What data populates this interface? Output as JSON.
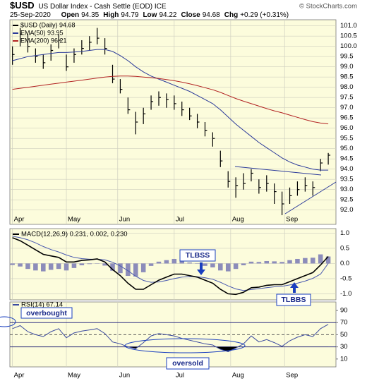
{
  "chart_data": [
    {
      "type": "ohlc",
      "title": "$USD",
      "subtitle": "US Dollar Index - Cash Settle (EOD) ICE",
      "credit": "© StockCharts.com",
      "date": "25-Sep-2020",
      "quote": [
        {
          "name": "Open",
          "value": 94.35
        },
        {
          "name": "High",
          "value": 94.79
        },
        {
          "name": "Low",
          "value": 94.22
        },
        {
          "name": "Close",
          "value": 94.68
        },
        {
          "name": "Chg",
          "value": 0.29,
          "value_label": "+0.29 (+0.31%)"
        }
      ],
      "x": [
        0,
        3,
        6,
        9,
        12,
        15,
        18,
        21,
        24,
        27,
        30,
        33,
        36,
        39,
        42,
        45,
        48,
        51,
        54,
        57,
        60,
        63,
        66,
        69,
        72,
        75,
        78,
        81,
        84,
        87,
        90,
        93,
        96,
        99,
        102,
        105,
        108,
        111,
        114,
        117,
        120,
        123
      ],
      "xlim": [
        -1,
        126
      ],
      "xticks": [
        {
          "value": 0,
          "label": "Apr"
        },
        {
          "value": 21,
          "label": "May"
        },
        {
          "value": 41,
          "label": "Jun"
        },
        {
          "value": 63,
          "label": "Jul"
        },
        {
          "value": 85,
          "label": "Aug"
        },
        {
          "value": 106,
          "label": "Sep"
        }
      ],
      "show_xtick_labels": true,
      "ylim": [
        91.3,
        101.3
      ],
      "yticks": [
        {
          "value": 92,
          "label": "92.0"
        },
        92.5,
        {
          "value": 93,
          "label": "93.0"
        },
        93.5,
        {
          "value": 94,
          "label": "94.0"
        },
        94.5,
        {
          "value": 95,
          "label": "95.0"
        },
        95.5,
        {
          "value": 96,
          "label": "96.0"
        },
        96.5,
        {
          "value": 97,
          "label": "97.0"
        },
        97.5,
        {
          "value": 98,
          "label": "98.0"
        },
        98.5,
        {
          "value": 99,
          "label": "99.0"
        },
        99.5,
        {
          "value": 100,
          "label": "100.0"
        },
        100.5,
        {
          "value": 101,
          "label": "101.0"
        }
      ],
      "grid": true,
      "series": [
        {
          "name": "$USD (Daily) 94.68",
          "color": "#000000",
          "high": [
            100.0,
            100.9,
            100.6,
            99.9,
            99.6,
            100.1,
            100.6,
            99.6,
            99.9,
            100.3,
            100.5,
            100.9,
            100.4,
            99.1,
            98.4,
            97.5,
            96.8,
            97.0,
            97.6,
            97.8,
            97.7,
            97.6,
            97.3,
            97.0,
            96.7,
            96.3,
            95.8,
            94.9,
            93.9,
            93.6,
            93.8,
            94.0,
            93.5,
            93.7,
            93.3,
            92.9,
            93.1,
            93.4,
            93.6,
            93.4,
            94.5,
            94.79
          ],
          "low": [
            99.1,
            100.0,
            99.7,
            99.2,
            98.9,
            99.3,
            99.9,
            98.8,
            99.2,
            99.6,
            99.8,
            100.1,
            99.6,
            98.2,
            97.7,
            96.7,
            95.7,
            96.2,
            96.9,
            97.1,
            97.0,
            96.9,
            96.6,
            96.4,
            96.0,
            95.6,
            95.1,
            94.1,
            93.1,
            92.6,
            93.0,
            93.4,
            92.8,
            92.9,
            92.3,
            91.75,
            92.3,
            92.7,
            92.9,
            92.7,
            93.9,
            94.22
          ],
          "close": [
            99.6,
            100.6,
            100.0,
            99.5,
            99.2,
            99.8,
            100.3,
            99.0,
            99.6,
            99.9,
            100.2,
            100.4,
            99.9,
            98.4,
            97.9,
            96.9,
            96.3,
            96.7,
            97.3,
            97.5,
            97.4,
            97.2,
            96.9,
            96.6,
            96.3,
            95.9,
            95.5,
            94.4,
            93.4,
            93.2,
            93.3,
            93.8,
            93.1,
            93.3,
            92.9,
            92.3,
            92.7,
            93.0,
            93.2,
            93.1,
            94.3,
            94.68
          ]
        },
        {
          "name": "EMA(50) 93.95",
          "color": "#2b3a9a",
          "values": [
            99.3,
            99.4,
            99.5,
            99.55,
            99.6,
            99.65,
            99.7,
            99.7,
            99.72,
            99.75,
            99.8,
            99.85,
            99.85,
            99.75,
            99.55,
            99.3,
            99.0,
            98.75,
            98.55,
            98.4,
            98.25,
            98.1,
            97.95,
            97.8,
            97.6,
            97.4,
            97.2,
            96.9,
            96.55,
            96.2,
            95.9,
            95.6,
            95.3,
            95.05,
            94.8,
            94.55,
            94.35,
            94.2,
            94.1,
            94.0,
            93.95,
            93.95
          ]
        },
        {
          "name": "EMA(200) 96.21",
          "color": "#b22222",
          "values": [
            97.9,
            97.95,
            98.0,
            98.05,
            98.1,
            98.15,
            98.2,
            98.25,
            98.3,
            98.35,
            98.4,
            98.45,
            98.5,
            98.53,
            98.55,
            98.55,
            98.53,
            98.5,
            98.47,
            98.43,
            98.38,
            98.32,
            98.25,
            98.17,
            98.08,
            97.98,
            97.88,
            97.75,
            97.6,
            97.45,
            97.32,
            97.2,
            97.08,
            96.96,
            96.85,
            96.75,
            96.64,
            96.53,
            96.42,
            96.32,
            96.25,
            96.21
          ]
        }
      ]
    },
    {
      "type": "macd",
      "title": "MACD(12,26,9) 0.231, 0.002, 0.230",
      "annotations": [
        "TLBSS",
        "TLBBS"
      ],
      "x": [
        0,
        3,
        6,
        9,
        12,
        15,
        18,
        21,
        24,
        27,
        30,
        33,
        36,
        39,
        42,
        45,
        48,
        51,
        54,
        57,
        60,
        63,
        66,
        69,
        72,
        75,
        78,
        81,
        84,
        87,
        90,
        93,
        96,
        99,
        102,
        105,
        108,
        111,
        114,
        117,
        120,
        123
      ],
      "xlim": [
        -1,
        126
      ],
      "xticks": [
        0,
        21,
        41,
        63,
        85,
        106
      ],
      "show_xtick_labels": false,
      "ylim": [
        -1.2,
        1.15
      ],
      "yticks": [
        {
          "value": -1,
          "label": "-1.0"
        },
        -0.5,
        {
          "value": 0,
          "label": "0.0"
        },
        0.5,
        {
          "value": 1,
          "label": "1.0"
        }
      ],
      "grid": true,
      "macd": {
        "color": "#000000",
        "values": [
          0.85,
          0.75,
          0.6,
          0.45,
          0.3,
          0.25,
          0.2,
          0.05,
          0.05,
          0.1,
          0.12,
          0.15,
          0.05,
          -0.2,
          -0.4,
          -0.65,
          -0.85,
          -0.85,
          -0.7,
          -0.55,
          -0.45,
          -0.35,
          -0.35,
          -0.4,
          -0.45,
          -0.55,
          -0.65,
          -0.85,
          -1.0,
          -1.02,
          -0.95,
          -0.8,
          -0.78,
          -0.72,
          -0.7,
          -0.7,
          -0.6,
          -0.5,
          -0.4,
          -0.3,
          -0.05,
          0.231
        ]
      },
      "signal": {
        "color": "#4a5ab0",
        "values": [
          0.9,
          0.85,
          0.78,
          0.68,
          0.56,
          0.46,
          0.38,
          0.28,
          0.2,
          0.16,
          0.14,
          0.14,
          0.12,
          0.04,
          -0.08,
          -0.24,
          -0.42,
          -0.56,
          -0.62,
          -0.61,
          -0.56,
          -0.5,
          -0.45,
          -0.43,
          -0.44,
          -0.47,
          -0.52,
          -0.62,
          -0.74,
          -0.84,
          -0.89,
          -0.86,
          -0.83,
          -0.8,
          -0.77,
          -0.75,
          -0.71,
          -0.65,
          -0.58,
          -0.49,
          -0.35,
          0.002
        ]
      },
      "histogram": {
        "color": "#8c8cba",
        "values": [
          -0.05,
          -0.1,
          -0.18,
          -0.23,
          -0.26,
          -0.21,
          -0.18,
          -0.23,
          -0.15,
          -0.06,
          -0.02,
          0.01,
          -0.07,
          -0.24,
          -0.32,
          -0.41,
          -0.43,
          -0.29,
          -0.08,
          0.06,
          0.11,
          0.15,
          0.1,
          0.03,
          -0.01,
          -0.08,
          -0.13,
          -0.23,
          -0.26,
          -0.18,
          -0.06,
          0.06,
          0.05,
          0.08,
          0.07,
          0.05,
          0.11,
          0.15,
          0.18,
          0.19,
          0.3,
          0.23
        ]
      }
    },
    {
      "type": "rsi",
      "title": "RSI(14) 67.14",
      "annotations": [
        "overbought",
        "oversold"
      ],
      "x": [
        0,
        3,
        6,
        9,
        12,
        15,
        18,
        21,
        24,
        27,
        30,
        33,
        36,
        39,
        42,
        45,
        48,
        51,
        54,
        57,
        60,
        63,
        66,
        69,
        72,
        75,
        78,
        81,
        84,
        87,
        90,
        93,
        96,
        99,
        102,
        105,
        108,
        111,
        114,
        117,
        120,
        123
      ],
      "xlim": [
        -1,
        126
      ],
      "xticks": [
        {
          "value": 0,
          "label": "Apr"
        },
        {
          "value": 21,
          "label": "May"
        },
        {
          "value": 41,
          "label": "Jun"
        },
        {
          "value": 63,
          "label": "Jul"
        },
        {
          "value": 85,
          "label": "Aug"
        },
        {
          "value": 106,
          "label": "Sep"
        }
      ],
      "show_xtick_labels": true,
      "ylim": [
        -3,
        104
      ],
      "yticks": [
        10,
        30,
        50,
        70,
        90
      ],
      "grid": false,
      "bands": [
        30,
        70
      ],
      "midline": 50,
      "color": "#3b4aa0",
      "values": [
        60,
        65,
        55,
        50,
        47,
        55,
        60,
        45,
        53,
        56,
        58,
        60,
        52,
        38,
        35,
        30,
        27,
        37,
        48,
        52,
        50,
        48,
        44,
        41,
        38,
        35,
        33,
        26,
        22,
        28,
        35,
        48,
        38,
        42,
        37,
        31,
        40,
        46,
        50,
        47,
        60,
        67.14
      ]
    }
  ]
}
